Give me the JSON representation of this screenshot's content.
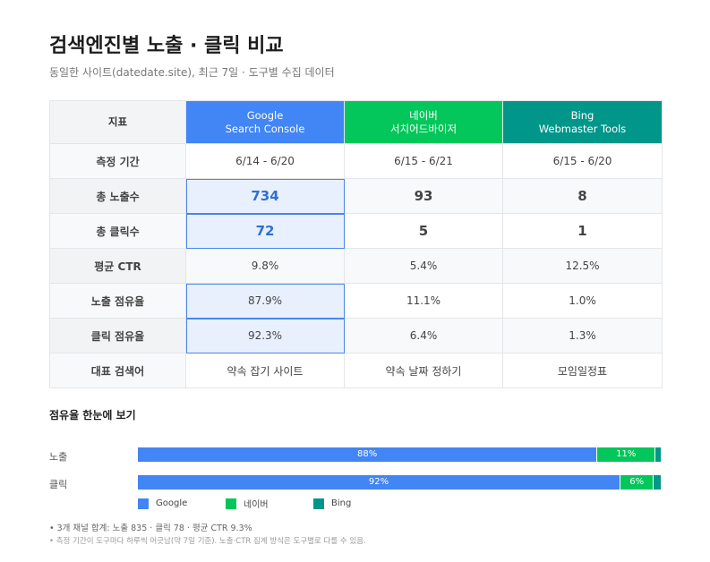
{
  "header": {
    "title": "검색엔진별 노출 · 클릭 비교",
    "subtitle": "동일한 사이트(datedate.site), 최근 7일 · 도구별 수집 데이터"
  },
  "table": {
    "metric_header": "지표",
    "columns": [
      {
        "line1": "Google",
        "line2": "Search Console",
        "color": "#4285f4"
      },
      {
        "line1": "네이버",
        "line2": "서치어드바이저",
        "color": "#03c75a"
      },
      {
        "line1": "Bing",
        "line2": "Webmaster Tools",
        "color": "#00968a"
      }
    ],
    "rows": [
      {
        "label": "측정 기간",
        "values": [
          "6/14 - 6/20",
          "6/15 - 6/21",
          "6/15 - 6/20"
        ]
      },
      {
        "label": "총 노출수",
        "values": [
          "734",
          "93",
          "8"
        ]
      },
      {
        "label": "총 클릭수",
        "values": [
          "72",
          "5",
          "1"
        ]
      },
      {
        "label": "평균 CTR",
        "values": [
          "9.8%",
          "5.4%",
          "12.5%"
        ]
      },
      {
        "label": "노출 점유율",
        "values": [
          "87.9%",
          "11.1%",
          "1.0%"
        ]
      },
      {
        "label": "클릭 점유율",
        "values": [
          "92.3%",
          "6.4%",
          "1.3%"
        ]
      },
      {
        "label": "대표 검색어",
        "values": [
          "약속 잡기 사이트",
          "약속 날짜 정하기",
          "모임일정표"
        ]
      }
    ]
  },
  "chart_data": {
    "type": "bar",
    "orientation": "horizontal",
    "stacked": true,
    "title": "점유율 한눈에 보기",
    "categories": [
      "노출",
      "클릭"
    ],
    "series": [
      {
        "name": "Google",
        "values": [
          87.9,
          92.3
        ],
        "labels": [
          "88%",
          "92%"
        ],
        "color": "#4285f4"
      },
      {
        "name": "네이버",
        "values": [
          11.1,
          6.4
        ],
        "labels": [
          "11%",
          "6%"
        ],
        "color": "#03c75a"
      },
      {
        "name": "Bing",
        "values": [
          1.0,
          1.3
        ],
        "labels": [
          "",
          ""
        ],
        "color": "#00968a"
      }
    ],
    "xlim": [
      0,
      100
    ],
    "legend": "bottom-left",
    "grid": false
  },
  "notes": [
    "• 3개 채널 합계: 노출 835 · 클릭 78 · 평균 CTR 9.3%",
    "• 측정 기간이 도구마다 하루씩 어긋남(약 7일 기준). 노출·CTR 집계 방식은 도구별로 다를 수 있음."
  ]
}
